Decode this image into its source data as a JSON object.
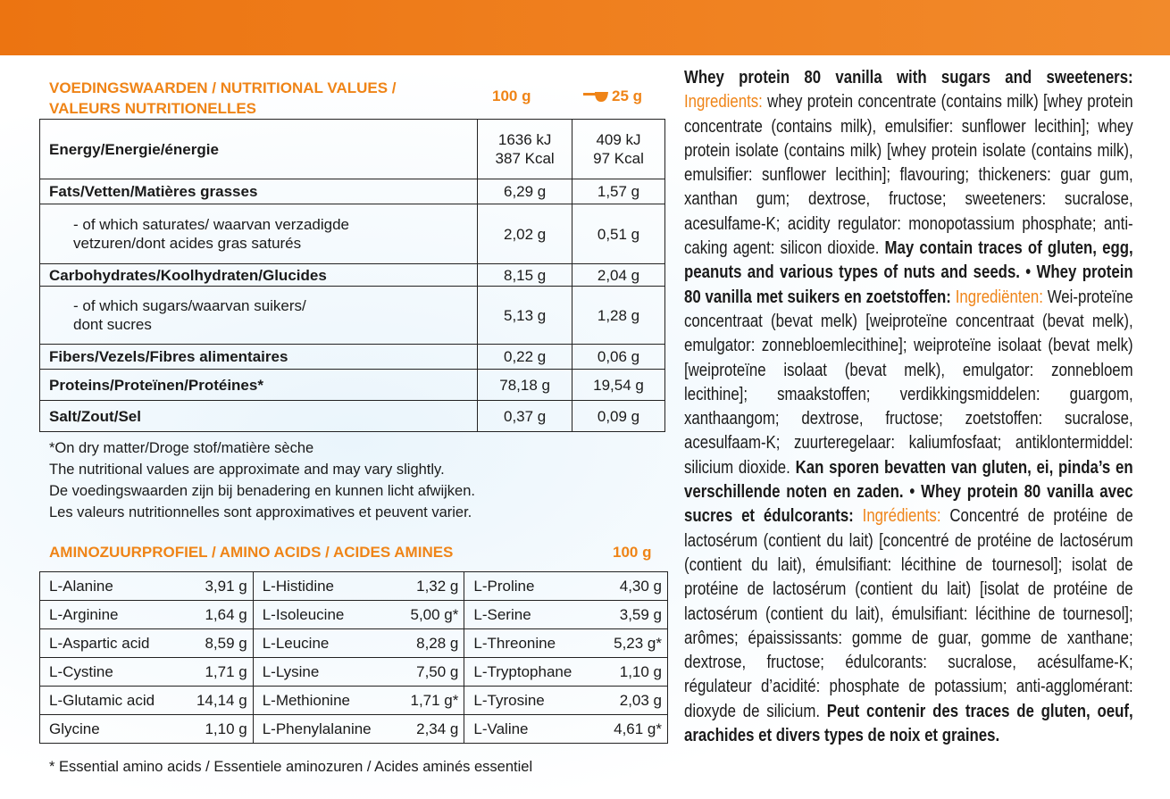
{
  "nutrition": {
    "title_lines": [
      "VOEDINGSWAARDEN / NUTRITIONAL VALUES /",
      "VALEURS NUTRITIONELLES"
    ],
    "col_100g": "100 g",
    "col_serving": "25 g",
    "rows": [
      {
        "label": [
          "Energy/Energie/énergie"
        ],
        "per_100g": [
          "1636 kJ",
          "387 Kcal"
        ],
        "per_serving": [
          "409 kJ",
          "97 Kcal"
        ],
        "bold": true
      },
      {
        "label": [
          "Fats/Vetten/Matières grasses"
        ],
        "per_100g": [
          "6,29 g"
        ],
        "per_serving": [
          "1,57 g"
        ],
        "bold": true
      },
      {
        "label": [
          "- of which saturates/ waarvan verzadigde",
          "vetzuren/dont acides gras saturés"
        ],
        "per_100g": [
          "2,02 g"
        ],
        "per_serving": [
          "0,51 g"
        ],
        "bold": false
      },
      {
        "label": [
          "Carbohydrates/Koolhydraten/Glucides"
        ],
        "per_100g": [
          "8,15 g"
        ],
        "per_serving": [
          "2,04 g"
        ],
        "bold": true
      },
      {
        "label": [
          "- of which sugars/waarvan suikers/",
          "dont sucres"
        ],
        "per_100g": [
          "5,13 g"
        ],
        "per_serving": [
          "1,28 g"
        ],
        "bold": false
      },
      {
        "label": [
          "Fibers/Vezels/Fibres alimentaires"
        ],
        "per_100g": [
          "0,22 g"
        ],
        "per_serving": [
          "0,06 g"
        ],
        "bold": true
      },
      {
        "label": [
          "Proteins/Proteïnen/Protéines*"
        ],
        "per_100g": [
          "78,18 g"
        ],
        "per_serving": [
          "19,54 g"
        ],
        "bold": true
      },
      {
        "label": [
          "Salt/Zout/Sel"
        ],
        "per_100g": [
          "0,37 g"
        ],
        "per_serving": [
          "0,09 g"
        ],
        "bold": true
      }
    ],
    "notes": [
      "*On dry matter/Droge stof/matière sèche",
      "The nutritional values are approximate and may vary slightly.",
      "De voedingswaarden zijn bij benadering en kunnen licht afwijken.",
      "Les valeurs nutritionnelles sont approximatives et peuvent varier."
    ]
  },
  "amino": {
    "title": "AMINOZUURPROFIEL / AMINO ACIDS / ACIDES AMINES",
    "col": "100 g",
    "rows": [
      [
        {
          "name": "L-Alanine",
          "value": "3,91 g"
        },
        {
          "name": "L-Histidine",
          "value": "1,32 g"
        },
        {
          "name": "L-Proline",
          "value": "4,30 g"
        }
      ],
      [
        {
          "name": "L-Arginine",
          "value": "1,64 g"
        },
        {
          "name": "L-Isoleucine",
          "value": "5,00 g*"
        },
        {
          "name": "L-Serine",
          "value": "3,59 g"
        }
      ],
      [
        {
          "name": "L-Aspartic acid",
          "value": "8,59 g"
        },
        {
          "name": "L-Leucine",
          "value": "8,28 g"
        },
        {
          "name": "L-Threonine",
          "value": "5,23 g*"
        }
      ],
      [
        {
          "name": "L-Cystine",
          "value": "1,71 g"
        },
        {
          "name": "L-Lysine",
          "value": "7,50 g"
        },
        {
          "name": "L-Tryptophane",
          "value": "1,10 g"
        }
      ],
      [
        {
          "name": "L-Glutamic acid",
          "value": "14,14 g"
        },
        {
          "name": "L-Methionine",
          "value": "1,71 g*"
        },
        {
          "name": "L-Tyrosine",
          "value": "2,03 g"
        }
      ],
      [
        {
          "name": "Glycine",
          "value": "1,10 g"
        },
        {
          "name": "L-Phenylalanine",
          "value": "2,34 g"
        },
        {
          "name": "L-Valine",
          "value": "4,61 g*"
        }
      ]
    ],
    "footnote": "* Essential amino acids / Essentiele aminozuren / Acides aminés essentiel"
  },
  "ingredients": [
    {
      "text": "Whey protein 80 vanilla with sugars and sweeteners:",
      "style": "bold"
    },
    {
      "text": "Ingredients:",
      "style": "orange"
    },
    {
      "text": "whey protein concentrate (contains milk) [whey protein concentrate (contains milk), emulsifier: sunflower lecithin]; whey protein isolate (contains milk) [whey protein isolate (contains milk), emulsifier: sunflower lecithin]; flavouring; thickeners: guar gum, xanthan gum; dextrose, fructose; sweeteners: sucralose, acesulfame-K; acidity regulator: monopotassium phosphate; anti-caking agent: silicon dioxide.",
      "style": "normal"
    },
    {
      "text": "May contain traces of gluten, egg, peanuts and various types of nuts and seeds. • Whey protein 80 vanilla met suikers en zoetstoffen:",
      "style": "bold"
    },
    {
      "text": "Ingrediënten:",
      "style": "orange"
    },
    {
      "text": "Wei-proteïne concentraat (bevat melk) [weiproteïne concentraat (bevat melk), emulgator: zonnebloemlecithine]; weiproteïne isolaat (bevat melk) [weiproteïne isolaat (bevat melk), emulgator: zonnebloem lecithine]; smaakstoffen; verdikkingsmiddelen: guargom, xanthaangom; dextrose, fructose; zoetstoffen: sucralose, acesulfaam-K; zuurteregelaar: kaliumfosfaat; antiklontermiddel: silicium dioxide.",
      "style": "normal"
    },
    {
      "text": "Kan sporen bevatten van gluten, ei, pinda’s en verschillende noten en zaden. • Whey protein 80 vanilla avec sucres et édulcorants:",
      "style": "bold"
    },
    {
      "text": "Ingrédients:",
      "style": "orange"
    },
    {
      "text": "Concentré de protéine de lactosérum (contient du lait) [concentré de protéine de lactosérum (contient du lait), émulsifiant: lécithine de tournesol]; isolat de protéine de lactosérum (contient du lait) [isolat de protéine de lactosérum (contient du lait), émulsifiant: lécithine de tournesol]; arômes; épaississants: gomme de guar, gomme de xanthane; dextrose, fructose; édulcorants: sucralose, acésulfame-K; régulateur d’acidité: phosphate de potassium; anti-agglomérant: dioxyde de silicium.",
      "style": "normal"
    },
    {
      "text": "Peut contenir des traces de gluten, oeuf, arachides et divers types de noix et graines.",
      "style": "bold"
    }
  ]
}
